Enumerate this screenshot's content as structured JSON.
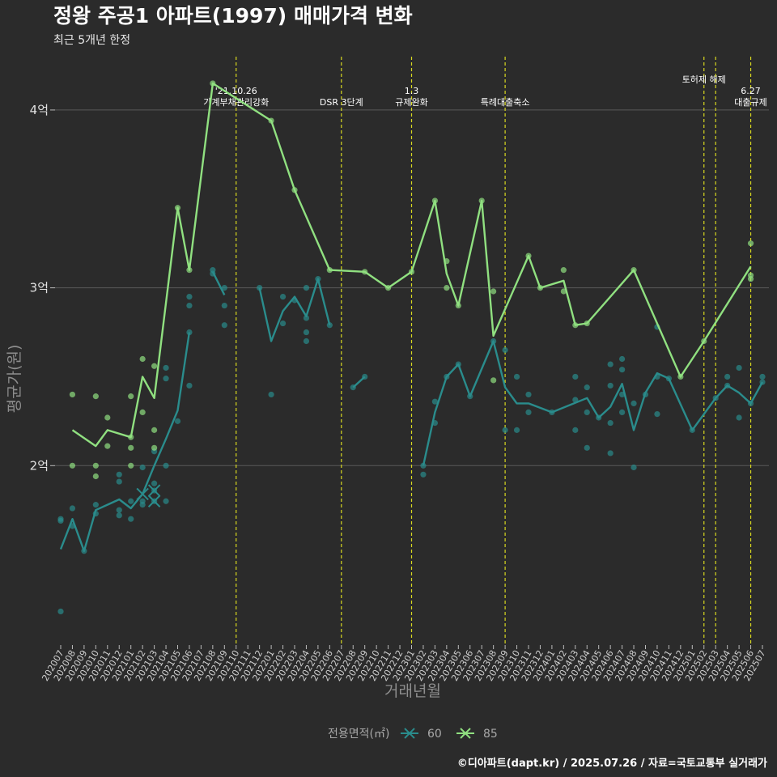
{
  "chart_data": {
    "type": "line",
    "title": "정왕 주공1 아파트(1997) 매매가격 변화",
    "subtitle": "최근 5개년 한정",
    "xlabel": "거래년월",
    "ylabel": "평균가(원)",
    "ylim": [
      1.0,
      4.3
    ],
    "y_ticks": [
      {
        "value": 2,
        "label": "2억"
      },
      {
        "value": 3,
        "label": "3억"
      },
      {
        "value": 4,
        "label": "4억"
      }
    ],
    "categories": [
      "202007",
      "202008",
      "202009",
      "202010",
      "202011",
      "202012",
      "202101",
      "202102",
      "202103",
      "202104",
      "202105",
      "202106",
      "202107",
      "202108",
      "202109",
      "202110",
      "202111",
      "202112",
      "202201",
      "202202",
      "202203",
      "202204",
      "202205",
      "202206",
      "202207",
      "202208",
      "202209",
      "202210",
      "202211",
      "202212",
      "202301",
      "202302",
      "202303",
      "202304",
      "202305",
      "202306",
      "202307",
      "202308",
      "202309",
      "202310",
      "202311",
      "202312",
      "202401",
      "202402",
      "202403",
      "202404",
      "202405",
      "202406",
      "202407",
      "202408",
      "202409",
      "202410",
      "202411",
      "202412",
      "202501",
      "202502",
      "202503",
      "202504",
      "202505",
      "202506",
      "202507"
    ],
    "series": [
      {
        "name": "60",
        "color": "#2a8c8c",
        "line": [
          [
            "202007",
            1.53
          ],
          [
            "202008",
            1.7
          ],
          [
            "202009",
            1.52
          ],
          [
            "202010",
            1.75
          ],
          [
            "202011",
            1.78
          ],
          [
            "202012",
            1.81
          ],
          [
            "202101",
            1.76
          ],
          [
            "202102",
            1.84
          ],
          [
            "202103",
            2.0
          ],
          [
            "202104",
            2.15
          ],
          [
            "202105",
            2.31
          ],
          [
            "202106",
            2.75
          ],
          null,
          [
            "202108",
            3.09
          ],
          [
            "202109",
            2.96
          ],
          null,
          [
            "202112",
            3.0
          ],
          [
            "202201",
            2.7
          ],
          [
            "202202",
            2.87
          ],
          [
            "202203",
            2.95
          ],
          [
            "202204",
            2.84
          ],
          [
            "202205",
            3.05
          ],
          [
            "202206",
            2.79
          ],
          null,
          [
            "202208",
            2.44
          ],
          [
            "202209",
            2.5
          ],
          null,
          [
            "202302",
            2.0
          ],
          [
            "202303",
            2.3
          ],
          [
            "202304",
            2.5
          ],
          [
            "202305",
            2.57
          ],
          [
            "202306",
            2.39
          ],
          [
            "202308",
            2.7
          ],
          [
            "202309",
            2.44
          ],
          [
            "202310",
            2.35
          ],
          [
            "202311",
            2.35
          ],
          [
            "202401",
            2.3
          ],
          [
            "202404",
            2.38
          ],
          [
            "202405",
            2.27
          ],
          [
            "202406",
            2.33
          ],
          [
            "202407",
            2.46
          ],
          [
            "202408",
            2.2
          ],
          [
            "202409",
            2.41
          ],
          [
            "202410",
            2.52
          ],
          [
            "202411",
            2.49
          ],
          [
            "202501",
            2.2
          ],
          [
            "202503",
            2.38
          ],
          [
            "202504",
            2.45
          ],
          [
            "202505",
            2.41
          ],
          [
            "202506",
            2.35
          ],
          [
            "202507",
            2.47
          ]
        ],
        "points": [
          [
            "202007",
            1.18
          ],
          [
            "202007",
            1.7
          ],
          [
            "202007",
            1.69
          ],
          [
            "202008",
            1.66
          ],
          [
            "202008",
            1.76
          ],
          [
            "202009",
            1.52
          ],
          [
            "202010",
            1.73
          ],
          [
            "202010",
            1.78
          ],
          [
            "202012",
            1.72
          ],
          [
            "202012",
            1.75
          ],
          [
            "202012",
            1.91
          ],
          [
            "202012",
            1.95
          ],
          [
            "202101",
            1.7
          ],
          [
            "202101",
            1.8
          ],
          [
            "202102",
            1.78
          ],
          [
            "202102",
            1.8
          ],
          [
            "202102",
            1.99
          ],
          [
            "202103",
            1.8
          ],
          [
            "202103",
            1.86
          ],
          [
            "202103",
            1.9
          ],
          [
            "202103",
            2.08
          ],
          [
            "202104",
            1.8
          ],
          [
            "202104",
            2.0
          ],
          [
            "202104",
            2.49
          ],
          [
            "202104",
            2.55
          ],
          [
            "202105",
            2.25
          ],
          [
            "202106",
            2.45
          ],
          [
            "202106",
            2.75
          ],
          [
            "202106",
            2.9
          ],
          [
            "202106",
            2.95
          ],
          [
            "202108",
            3.08
          ],
          [
            "202108",
            3.1
          ],
          [
            "202109",
            2.79
          ],
          [
            "202109",
            2.9
          ],
          [
            "202109",
            3.0
          ],
          [
            "202112",
            3.0
          ],
          [
            "202201",
            2.4
          ],
          [
            "202202",
            2.8
          ],
          [
            "202202",
            2.95
          ],
          [
            "202203",
            2.93
          ],
          [
            "202204",
            2.7
          ],
          [
            "202204",
            2.75
          ],
          [
            "202204",
            2.83
          ],
          [
            "202204",
            3.0
          ],
          [
            "202205",
            3.05
          ],
          [
            "202206",
            2.79
          ],
          [
            "202208",
            2.44
          ],
          [
            "202209",
            2.5
          ],
          [
            "202302",
            1.95
          ],
          [
            "202302",
            2.0
          ],
          [
            "202303",
            2.24
          ],
          [
            "202303",
            2.36
          ],
          [
            "202304",
            2.5
          ],
          [
            "202305",
            2.57
          ],
          [
            "202306",
            2.39
          ],
          [
            "202308",
            2.7
          ],
          [
            "202309",
            2.65
          ],
          [
            "202309",
            2.2
          ],
          [
            "202310",
            2.5
          ],
          [
            "202310",
            2.2
          ],
          [
            "202311",
            2.3
          ],
          [
            "202311",
            2.4
          ],
          [
            "202401",
            2.3
          ],
          [
            "202403",
            2.5
          ],
          [
            "202403",
            2.37
          ],
          [
            "202403",
            2.2
          ],
          [
            "202404",
            2.44
          ],
          [
            "202404",
            2.3
          ],
          [
            "202404",
            2.1
          ],
          [
            "202405",
            2.27
          ],
          [
            "202406",
            2.57
          ],
          [
            "202406",
            2.45
          ],
          [
            "202406",
            2.24
          ],
          [
            "202406",
            2.07
          ],
          [
            "202407",
            2.6
          ],
          [
            "202407",
            2.54
          ],
          [
            "202407",
            2.4
          ],
          [
            "202407",
            2.3
          ],
          [
            "202408",
            1.99
          ],
          [
            "202408",
            2.35
          ],
          [
            "202409",
            2.4
          ],
          [
            "202410",
            2.78
          ],
          [
            "202410",
            2.5
          ],
          [
            "202410",
            2.29
          ],
          [
            "202411",
            2.49
          ],
          [
            "202501",
            2.2
          ],
          [
            "202503",
            2.38
          ],
          [
            "202504",
            2.45
          ],
          [
            "202504",
            2.5
          ],
          [
            "202505",
            2.55
          ],
          [
            "202505",
            2.27
          ],
          [
            "202506",
            2.35
          ],
          [
            "202507",
            2.5
          ],
          [
            "202507",
            2.47
          ]
        ],
        "x_markers": [
          [
            "202102",
            1.84
          ],
          [
            "202103",
            1.86
          ],
          [
            "202103",
            1.8
          ]
        ]
      },
      {
        "name": "85",
        "color": "#90e080",
        "line": [
          [
            "202008",
            2.2
          ],
          [
            "202010",
            2.11
          ],
          [
            "202011",
            2.2
          ],
          [
            "202101",
            2.16
          ],
          [
            "202102",
            2.5
          ],
          [
            "202103",
            2.38
          ],
          [
            "202105",
            3.45
          ],
          [
            "202106",
            3.1
          ],
          [
            "202108",
            4.15
          ],
          [
            "202201",
            3.94
          ],
          [
            "202203",
            3.55
          ],
          [
            "202206",
            3.1
          ],
          [
            "202209",
            3.09
          ],
          [
            "202211",
            3.0
          ],
          [
            "202301",
            3.09
          ],
          [
            "202303",
            3.49
          ],
          [
            "202304",
            3.08
          ],
          [
            "202305",
            2.9
          ],
          [
            "202307",
            3.49
          ],
          [
            "202308",
            2.73
          ],
          [
            "202311",
            3.18
          ],
          [
            "202312",
            3.0
          ],
          [
            "202402",
            3.04
          ],
          [
            "202403",
            2.79
          ],
          [
            "202404",
            2.8
          ],
          [
            "202408",
            3.1
          ],
          [
            "202412",
            2.5
          ],
          [
            "202502",
            2.7
          ],
          [
            "202506",
            3.12
          ]
        ],
        "points": [
          [
            "202008",
            2.4
          ],
          [
            "202008",
            2.0
          ],
          [
            "202010",
            2.39
          ],
          [
            "202010",
            2.0
          ],
          [
            "202010",
            1.94
          ],
          [
            "202011",
            2.27
          ],
          [
            "202011",
            2.11
          ],
          [
            "202101",
            2.39
          ],
          [
            "202101",
            2.16
          ],
          [
            "202101",
            2.1
          ],
          [
            "202101",
            2.0
          ],
          [
            "202102",
            2.6
          ],
          [
            "202102",
            2.3
          ],
          [
            "202103",
            2.56
          ],
          [
            "202103",
            2.2
          ],
          [
            "202103",
            2.1
          ],
          [
            "202105",
            3.45
          ],
          [
            "202106",
            3.1
          ],
          [
            "202108",
            4.15
          ],
          [
            "202201",
            3.94
          ],
          [
            "202203",
            3.55
          ],
          [
            "202206",
            3.1
          ],
          [
            "202209",
            3.09
          ],
          [
            "202211",
            3.0
          ],
          [
            "202301",
            3.09
          ],
          [
            "202303",
            3.49
          ],
          [
            "202304",
            3.15
          ],
          [
            "202304",
            3.0
          ],
          [
            "202305",
            2.9
          ],
          [
            "202307",
            3.49
          ],
          [
            "202308",
            2.98
          ],
          [
            "202308",
            2.48
          ],
          [
            "202311",
            3.18
          ],
          [
            "202312",
            3.0
          ],
          [
            "202402",
            3.1
          ],
          [
            "202402",
            2.98
          ],
          [
            "202403",
            2.79
          ],
          [
            "202404",
            2.8
          ],
          [
            "202408",
            3.1
          ],
          [
            "202412",
            2.5
          ],
          [
            "202502",
            2.7
          ],
          [
            "202506",
            3.25
          ],
          [
            "202506",
            3.07
          ],
          [
            "202506",
            3.05
          ]
        ],
        "x_markers": []
      }
    ],
    "events": [
      {
        "x": "202110",
        "offset": 0.0,
        "lines": [
          "'21.10.26",
          "가계부채관리강화"
        ]
      },
      {
        "x": "202207",
        "offset": 0.0,
        "lines": [
          "DSR 3단계"
        ]
      },
      {
        "x": "202301",
        "offset": 0.0,
        "lines": [
          "1.3",
          "규제완화"
        ]
      },
      {
        "x": "202309",
        "offset": 0.0,
        "lines": [
          "특례대출축소"
        ]
      },
      {
        "x": "202502",
        "offset": 0.0,
        "lines": [
          "토허제 해제"
        ]
      },
      {
        "x": "202503",
        "offset": 0.0,
        "lines": []
      },
      {
        "x": "202506",
        "offset": 0.0,
        "lines": [
          "6.27",
          "대출규제"
        ]
      }
    ],
    "legend": {
      "title": "전용면적(㎡)",
      "position": "bottom"
    },
    "grid": true
  },
  "caption": "©디아파트(dapt.kr) / 2025.07.26 / 자료=국토교통부 실거래가",
  "colors": {
    "background": "#2b2b2b",
    "grid": "#5a5a5a",
    "event_line": "#d8d820"
  }
}
